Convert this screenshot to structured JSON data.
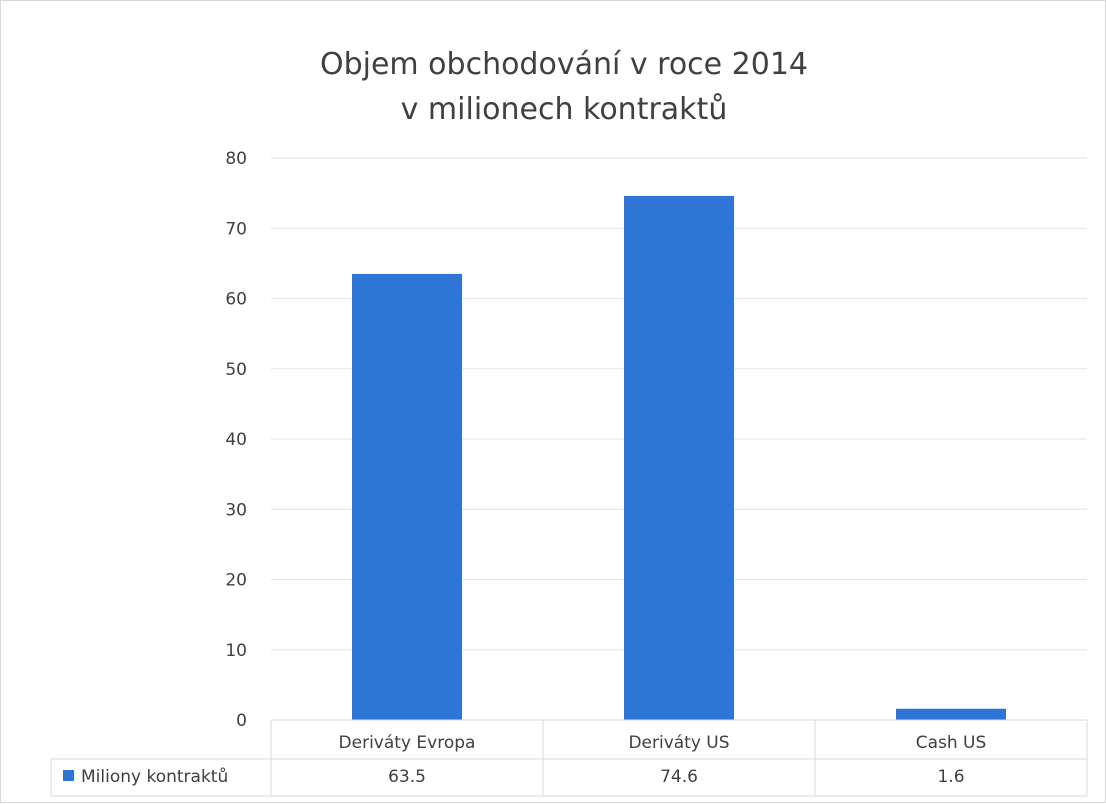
{
  "chart_data": {
    "type": "bar",
    "title": [
      "Objem obchodování v roce 2014",
      "v milionech kontraktů"
    ],
    "categories": [
      "Deriváty Evropa",
      "Deriváty US",
      "Cash US"
    ],
    "series": [
      {
        "name": "Miliony kontraktů",
        "color": "#2e75d6",
        "values": [
          63.5,
          74.6,
          1.6
        ]
      }
    ],
    "ylim": [
      0,
      80
    ],
    "yticks": [
      0,
      10,
      20,
      30,
      40,
      50,
      60,
      70,
      80
    ],
    "grid": true,
    "data_table": true,
    "legend_position": "data-table"
  }
}
